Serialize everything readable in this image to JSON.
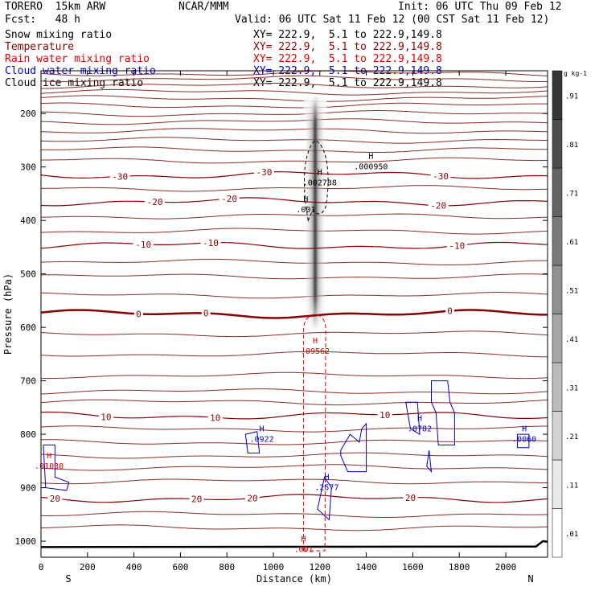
{
  "header": {
    "model": "TORERO  15km ARW",
    "institution": "NCAR/MMM",
    "init": "Init: 06 UTC Thu 09 Feb 12",
    "fcst": "Fcst:   48 h",
    "valid": "Valid: 06 UTC Sat 11 Feb 12 (00 CST Sat 11 Feb 12)"
  },
  "legend": [
    {
      "field": "Snow mixing ratio",
      "color": "#000000",
      "xy": ""
    },
    {
      "field": "Temperature",
      "color": "#8b0000",
      "xy": "XY= 222.9,  5.1 to 222.9,149.8"
    },
    {
      "field": "Rain water mixing ratio",
      "color": "#e00000",
      "xy": "XY= 222.9,  5.1 to 222.9,149.8"
    },
    {
      "field": "Cloud water mixing ratio",
      "color": "#0000cc",
      "xy": "XY= 222.9,  5.1 to 222.9,149.8"
    },
    {
      "field": "Cloud ice mixing ratio",
      "color": "#000000",
      "xy": "XY= 222.9,  5.1 to 222.9,149.8"
    }
  ],
  "snow_xy": "XY= 222.9,  5.1 to 222.9,149.8",
  "chart_data": {
    "type": "cross-section",
    "xlabel": "Distance (km)",
    "ylabel": "Pressure (hPa)",
    "xlim": [
      0,
      2180
    ],
    "ylim": [
      1030,
      120
    ],
    "x_ticks": [
      0,
      200,
      400,
      600,
      800,
      1000,
      1200,
      1400,
      1600,
      1800,
      2000
    ],
    "y_ticks": [
      200,
      300,
      400,
      500,
      600,
      700,
      800,
      900,
      1000
    ],
    "end_labels": {
      "left": "S",
      "right": "N"
    },
    "temperature_contours": [
      {
        "label": "-30",
        "p": 315,
        "labels_at": [
          340,
          960,
          1720
        ]
      },
      {
        "label": "-20",
        "p": 365,
        "labels_at": [
          490,
          810,
          1710
        ]
      },
      {
        "label": "-10",
        "p": 447,
        "labels_at": [
          440,
          730,
          1790
        ]
      },
      {
        "label": "0",
        "p": 575,
        "labels_at": [
          420,
          710,
          1760
        ]
      },
      {
        "label": "10",
        "p": 765,
        "labels_at": [
          280,
          750,
          1480
        ]
      },
      {
        "label": "20",
        "p": 920,
        "labels_at": [
          60,
          670,
          910,
          1590
        ]
      }
    ],
    "maxima_labels": [
      {
        "field": "Cloud ice mixing ratio",
        "text": ".002788",
        "x": 1200,
        "p": 330
      },
      {
        "field": "Cloud ice mixing ratio",
        "text": ".000950",
        "x": 1420,
        "p": 300
      },
      {
        "field": "Cloud ice mixing ratio",
        "text": ".001",
        "x": 1140,
        "p": 380
      },
      {
        "field": "Rain water mixing ratio",
        "text": ".09562",
        "x": 1180,
        "p": 645
      },
      {
        "field": "Rain water mixing ratio",
        "text": ".001",
        "x": 1130,
        "p": 1016
      },
      {
        "field": "Rain water mixing ratio",
        "text": ".01030",
        "x": 35,
        "p": 860
      },
      {
        "field": "Cloud water mixing ratio",
        "text": ".0922",
        "x": 950,
        "p": 810
      },
      {
        "field": "Cloud water mixing ratio",
        "text": ".0782",
        "x": 1630,
        "p": 790
      },
      {
        "field": "Cloud water mixing ratio",
        "text": ".0060",
        "x": 2080,
        "p": 810
      },
      {
        "field": "Cloud water mixing ratio",
        "text": ".2577",
        "x": 1230,
        "p": 900
      }
    ],
    "colorbar": {
      "units": "g kg-1",
      "values": [
        ".01",
        ".11",
        ".21",
        ".31",
        ".41",
        ".51",
        ".61",
        ".71",
        ".81",
        ".91"
      ]
    }
  }
}
